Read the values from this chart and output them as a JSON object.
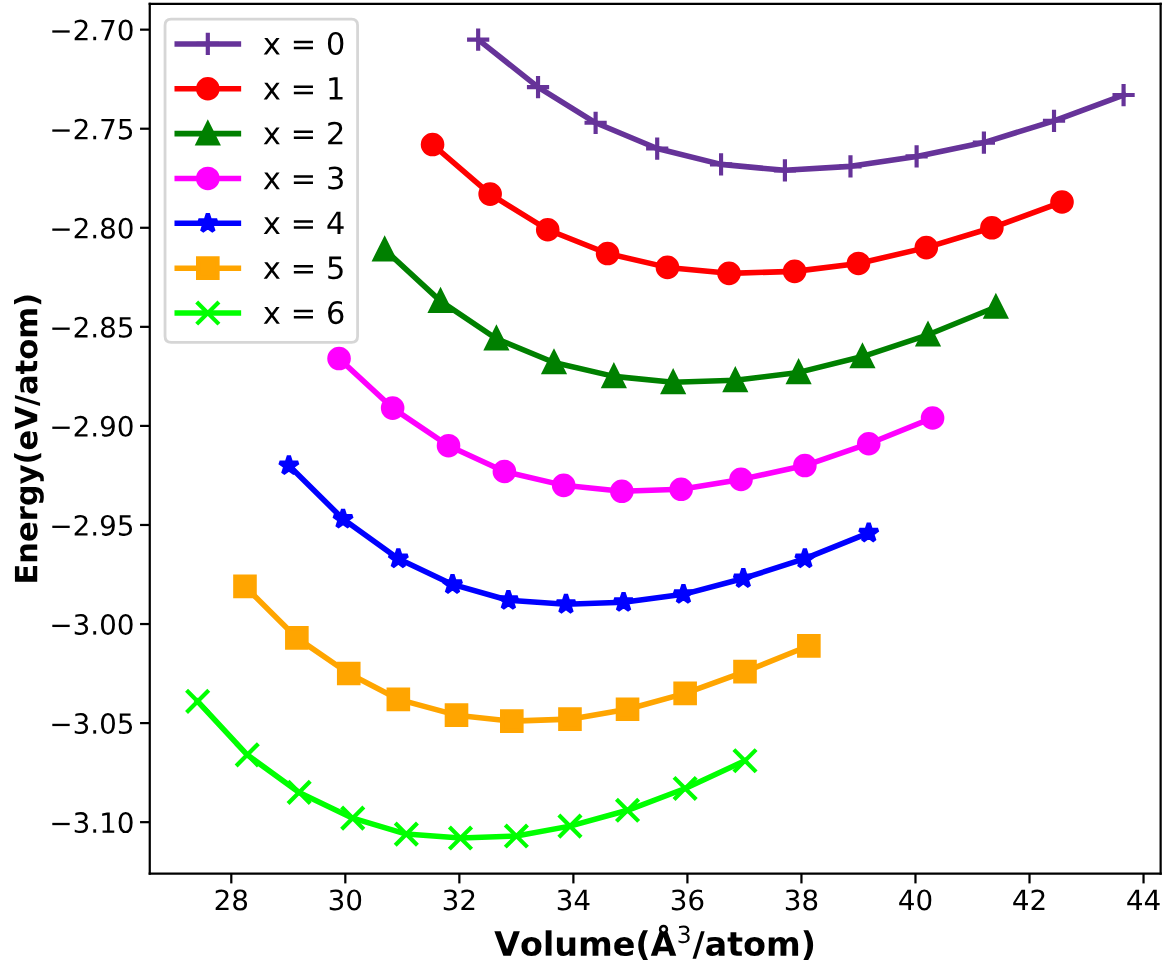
{
  "chart_data": {
    "type": "line",
    "xlabel": "Volume(Å$^{3}$/atom)",
    "ylabel": "Energy(eV/atom)",
    "xlim": [
      26.57,
      44.3
    ],
    "xticks": [
      28,
      30,
      32,
      34,
      36,
      38,
      40,
      42,
      44
    ],
    "ylim": [
      -3.126,
      -2.687
    ],
    "yticks": [
      {
        "value": -3.1,
        "label": "−3.10"
      },
      {
        "value": -3.05,
        "label": "−3.05"
      },
      {
        "value": -3.0,
        "label": "−3.00"
      },
      {
        "value": -2.95,
        "label": "−2.95"
      },
      {
        "value": -2.9,
        "label": "−2.90"
      },
      {
        "value": -2.85,
        "label": "−2.85"
      },
      {
        "value": -2.8,
        "label": "−2.80"
      },
      {
        "value": -2.75,
        "label": "−2.75"
      },
      {
        "value": -2.7,
        "label": "−2.70"
      }
    ],
    "grid": false,
    "legend": "top left",
    "line_style": "solid",
    "series": [
      {
        "name": "x = 0",
        "color": "#663399",
        "marker": "plus",
        "x": [
          32.33,
          33.38,
          34.39,
          35.47,
          36.59,
          37.71,
          38.86,
          40.02,
          41.2,
          42.43,
          43.65
        ],
        "values": [
          -2.705,
          -2.729,
          -2.747,
          -2.76,
          -2.768,
          -2.771,
          -2.769,
          -2.764,
          -2.757,
          -2.746,
          -2.733
        ]
      },
      {
        "name": "x = 1",
        "color": "#ff0000",
        "marker": "circle",
        "x": [
          31.53,
          32.54,
          33.55,
          34.6,
          35.65,
          36.73,
          37.88,
          39.0,
          40.19,
          41.34,
          42.57
        ],
        "values": [
          -2.758,
          -2.783,
          -2.801,
          -2.813,
          -2.82,
          -2.823,
          -2.822,
          -2.818,
          -2.81,
          -2.8,
          -2.787
        ]
      },
      {
        "name": "x = 2",
        "color": "#008000",
        "marker": "triangle",
        "x": [
          30.69,
          31.67,
          32.65,
          33.66,
          34.71,
          35.75,
          36.84,
          37.95,
          39.07,
          40.22,
          41.41
        ],
        "values": [
          -2.811,
          -2.837,
          -2.856,
          -2.868,
          -2.875,
          -2.878,
          -2.877,
          -2.873,
          -2.865,
          -2.854,
          -2.84
        ]
      },
      {
        "name": "x = 3",
        "color": "#ff00ff",
        "marker": "circle",
        "x": [
          29.89,
          30.83,
          31.81,
          32.79,
          33.83,
          34.85,
          35.89,
          36.94,
          38.06,
          39.18,
          40.3
        ],
        "values": [
          -2.866,
          -2.891,
          -2.91,
          -2.923,
          -2.93,
          -2.933,
          -2.932,
          -2.927,
          -2.92,
          -2.909,
          -2.896
        ]
      },
      {
        "name": "x = 4",
        "color": "#0000ff",
        "marker": "star",
        "x": [
          29.01,
          29.96,
          30.93,
          31.88,
          32.86,
          33.87,
          34.88,
          35.93,
          36.98,
          38.06,
          39.18
        ],
        "values": [
          -2.92,
          -2.947,
          -2.967,
          -2.98,
          -2.988,
          -2.99,
          -2.989,
          -2.985,
          -2.977,
          -2.967,
          -2.954
        ]
      },
      {
        "name": "x = 5",
        "color": "#ffa500",
        "marker": "square",
        "x": [
          28.24,
          29.15,
          30.06,
          30.93,
          31.95,
          32.92,
          33.94,
          34.95,
          35.96,
          37.01,
          38.13
        ],
        "values": [
          -2.981,
          -3.007,
          -3.025,
          -3.038,
          -3.046,
          -3.049,
          -3.048,
          -3.043,
          -3.035,
          -3.024,
          -3.011
        ]
      },
      {
        "name": "x = 6",
        "color": "#00ff00",
        "marker": "cross",
        "x": [
          27.41,
          28.28,
          29.19,
          30.13,
          31.07,
          32.02,
          33.0,
          33.94,
          34.95,
          35.96,
          37.01
        ],
        "values": [
          -3.039,
          -3.066,
          -3.085,
          -3.098,
          -3.106,
          -3.108,
          -3.107,
          -3.102,
          -3.094,
          -3.083,
          -3.069
        ]
      }
    ]
  }
}
